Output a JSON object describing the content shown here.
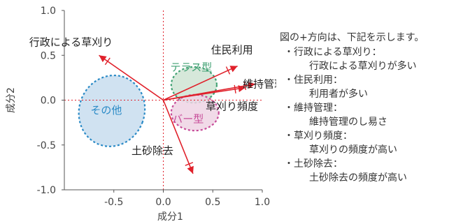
{
  "chart_data": {
    "type": "scatter",
    "subtype": "pca-biplot",
    "xlabel": "成分1",
    "ylabel": "成分2",
    "xlim": [
      -1.0,
      1.0
    ],
    "ylim": [
      -1.0,
      1.0
    ],
    "xticks": [
      -0.5,
      0.0,
      0.5,
      1.0
    ],
    "yticks": [
      1.0,
      0.5,
      0.0,
      -0.5,
      -1.0
    ],
    "xtick_labels": [
      "-0.5",
      "0.0",
      "0.5",
      "1.0"
    ],
    "ytick_labels": [
      "1.0",
      "0.5",
      "0.0",
      "-0.5",
      "-1.0"
    ],
    "grid": false,
    "zero_lines": true,
    "arrows": [
      {
        "label": "行政による草刈り",
        "x": -0.65,
        "y": 0.5
      },
      {
        "label": "住民利用",
        "x": 0.75,
        "y": 0.38
      },
      {
        "label": "維持管理",
        "x": 0.93,
        "y": 0.18
      },
      {
        "label": "草刈り頻度",
        "x": 0.83,
        "y": 0.14
      },
      {
        "label": "土砂除去",
        "x": 0.3,
        "y": -0.82
      }
    ],
    "clusters": [
      {
        "label": "その他",
        "cx": -0.52,
        "cy": -0.12,
        "rx": 0.33,
        "ry": 0.4,
        "color": "#2a8ac6",
        "fill": "#c8ddef"
      },
      {
        "label": "テラス型",
        "cx": 0.31,
        "cy": 0.17,
        "rx": 0.23,
        "ry": 0.2,
        "color": "#3fa072",
        "fill": "#cfe4d3"
      },
      {
        "label": "バー型",
        "cx": 0.32,
        "cy": -0.14,
        "rx": 0.24,
        "ry": 0.2,
        "color": "#c74c99",
        "fill": "#efd3e4"
      }
    ],
    "colors": {
      "arrow": "#e0202a",
      "zero_line": "#e0202a",
      "axis": "#555555"
    }
  },
  "legend": {
    "heading": "図の+方向は、下記を示します。",
    "items": [
      {
        "name": "・行政による草刈り：",
        "desc": "行政による草刈りが多い"
      },
      {
        "name": "・住民利用：",
        "desc": "利用者が多い"
      },
      {
        "name": "・維持管理：",
        "desc": "維持管理のし易さ"
      },
      {
        "name": "・草刈り頻度：",
        "desc": "草刈りの頻度が高い"
      },
      {
        "name": "・土砂除去：",
        "desc": "土砂除去の頻度が高い"
      }
    ]
  }
}
